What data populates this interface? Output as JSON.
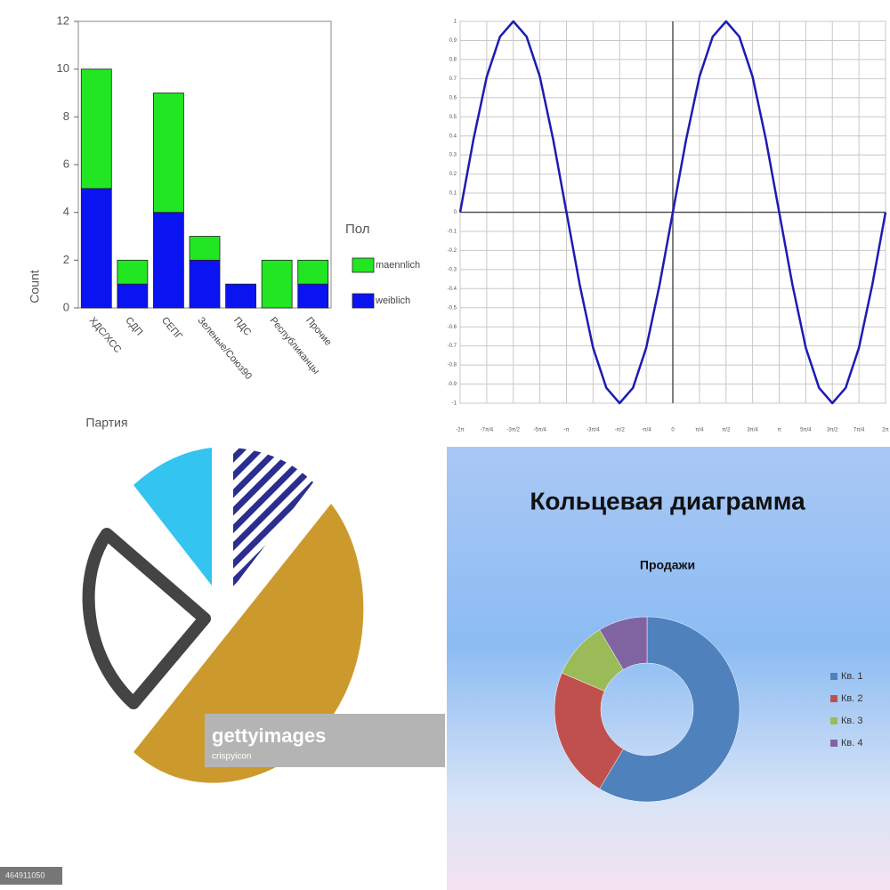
{
  "chart_data": [
    {
      "type": "bar",
      "y_label": "Count",
      "x_label": "Партия",
      "legend_title": "Пол",
      "categories": [
        "ХДС/ХСС",
        "СДП",
        "СЕПГ",
        "Зеленые/Союз90",
        "ПДС",
        "Республиканцы",
        "Прочие"
      ],
      "series": [
        {
          "name": "maennlich",
          "color": "#22e622",
          "values": [
            5,
            1,
            5,
            1,
            0,
            2,
            1
          ]
        },
        {
          "name": "weiblich",
          "color": "#0a14f0",
          "values": [
            5,
            1,
            4,
            2,
            1,
            0,
            1
          ]
        }
      ],
      "ylim": [
        0,
        12
      ],
      "yticks": [
        0,
        2,
        4,
        6,
        8,
        10,
        12
      ],
      "stacked": true
    },
    {
      "type": "line",
      "color": "#1c1cb4",
      "grid": true,
      "x": [
        -6.283,
        -5.89,
        -5.498,
        -5.105,
        -4.712,
        -4.32,
        -3.927,
        -3.534,
        -3.142,
        -2.749,
        -2.356,
        -1.963,
        -1.571,
        -1.178,
        -0.785,
        -0.393,
        0,
        0.393,
        0.785,
        1.178,
        1.571,
        1.963,
        2.356,
        2.749,
        3.142,
        3.534,
        3.927,
        4.32,
        4.712,
        5.105,
        5.498,
        5.89,
        6.283
      ],
      "values": [
        0,
        0.38,
        0.71,
        0.92,
        1,
        0.92,
        0.71,
        0.38,
        0,
        -0.38,
        -0.71,
        -0.92,
        -1,
        -0.92,
        -0.71,
        -0.38,
        0,
        0.38,
        0.71,
        0.92,
        1,
        0.92,
        0.71,
        0.38,
        0,
        -0.38,
        -0.71,
        -0.92,
        -1,
        -0.92,
        -0.71,
        -0.38,
        0
      ],
      "xlim": [
        -6.283,
        6.283
      ],
      "xticks": [
        {
          "value": -6.283,
          "label": "-2π"
        },
        {
          "value": -5.498,
          "label": "-7π/4"
        },
        {
          "value": -4.712,
          "label": "-3π/2"
        },
        {
          "value": -3.927,
          "label": "-5π/4"
        },
        {
          "value": -3.142,
          "label": "-π"
        },
        {
          "value": -2.356,
          "label": "-3π/4"
        },
        {
          "value": -1.571,
          "label": "-π/2"
        },
        {
          "value": -0.785,
          "label": "-π/4"
        },
        0,
        {
          "value": 0.785,
          "label": "π/4"
        },
        {
          "value": 1.571,
          "label": "π/2"
        },
        {
          "value": 2.356,
          "label": "3π/4"
        },
        {
          "value": 3.142,
          "label": "π"
        },
        {
          "value": 3.927,
          "label": "5π/4"
        },
        {
          "value": 4.712,
          "label": "3π/2"
        },
        {
          "value": 5.498,
          "label": "7π/4"
        },
        {
          "value": 6.283,
          "label": "2π"
        }
      ],
      "ylim": [
        -1,
        1
      ],
      "yticks": [
        1,
        0.9,
        0.8,
        0.7,
        0.6,
        0.5,
        0.4,
        0.3,
        0.2,
        0.1,
        0,
        -0.1,
        -0.2,
        -0.3,
        -0.4,
        -0.5,
        -0.6,
        -0.7,
        -0.8,
        -0.9,
        -1
      ]
    },
    {
      "type": "donut",
      "title": "Кольцевая диаграмма",
      "subtitle": "Продажи",
      "categories": [
        "Кв. 1",
        "Кв. 2",
        "Кв. 3",
        "Кв. 4"
      ],
      "values": [
        8.2,
        3.2,
        1.4,
        1.2
      ],
      "colors": [
        "#4f81bd",
        "#c0504d",
        "#9bbb59",
        "#8064a2"
      ],
      "legend": "right"
    }
  ],
  "stock_image": {
    "watermark": "gettyimages",
    "credit": "crispyicon",
    "image_id": "464911050"
  }
}
